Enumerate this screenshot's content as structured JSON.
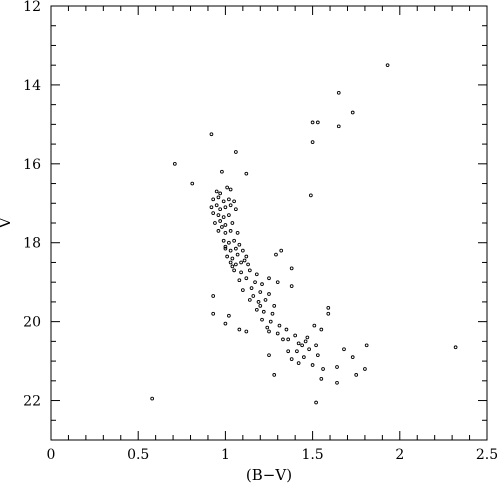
{
  "chart_data": {
    "type": "scatter",
    "title": "",
    "xlabel": "(B−V)",
    "ylabel": "V",
    "xlim": [
      0,
      2.5
    ],
    "ylim": [
      23,
      12
    ],
    "y_inverted": true,
    "x_ticks": [
      0,
      0.5,
      1,
      1.5,
      2,
      2.5
    ],
    "x_tick_labels": [
      "0",
      "0.5",
      "1",
      "1.5",
      "2",
      "2.5"
    ],
    "y_ticks": [
      12,
      14,
      16,
      18,
      20,
      22
    ],
    "y_tick_labels": [
      "12",
      "14",
      "16",
      "18",
      "20",
      "22"
    ],
    "grid": false,
    "marker": "open-circle",
    "series": [
      {
        "points": [
          [
            0.92,
            15.25
          ],
          [
            0.71,
            16.0
          ],
          [
            0.81,
            16.5
          ],
          [
            1.06,
            15.7
          ],
          [
            1.12,
            16.25
          ],
          [
            0.98,
            16.2
          ],
          [
            0.95,
            16.7
          ],
          [
            0.97,
            16.75
          ],
          [
            1.01,
            16.6
          ],
          [
            1.03,
            16.65
          ],
          [
            0.93,
            16.9
          ],
          [
            0.96,
            16.85
          ],
          [
            0.99,
            16.95
          ],
          [
            1.02,
            16.9
          ],
          [
            1.05,
            16.95
          ],
          [
            0.92,
            17.1
          ],
          [
            0.95,
            17.05
          ],
          [
            0.97,
            17.15
          ],
          [
            1.0,
            17.1
          ],
          [
            1.03,
            17.05
          ],
          [
            1.06,
            17.15
          ],
          [
            0.93,
            17.25
          ],
          [
            0.96,
            17.3
          ],
          [
            0.99,
            17.35
          ],
          [
            1.02,
            17.3
          ],
          [
            0.94,
            17.5
          ],
          [
            0.97,
            17.45
          ],
          [
            1.0,
            17.55
          ],
          [
            1.04,
            17.5
          ],
          [
            0.96,
            17.7
          ],
          [
            1.0,
            17.75
          ],
          [
            1.03,
            17.7
          ],
          [
            1.07,
            17.75
          ],
          [
            0.99,
            17.95
          ],
          [
            1.02,
            18.0
          ],
          [
            1.05,
            17.95
          ],
          [
            1.08,
            18.05
          ],
          [
            1.0,
            18.15
          ],
          [
            1.03,
            18.2
          ],
          [
            1.06,
            18.15
          ],
          [
            1.1,
            18.2
          ],
          [
            1.01,
            18.35
          ],
          [
            1.04,
            18.4
          ],
          [
            1.07,
            18.3
          ],
          [
            1.12,
            18.35
          ],
          [
            1.03,
            18.5
          ],
          [
            1.06,
            18.55
          ],
          [
            1.09,
            18.5
          ],
          [
            1.13,
            18.55
          ],
          [
            1.05,
            18.7
          ],
          [
            1.09,
            18.75
          ],
          [
            1.14,
            18.7
          ],
          [
            1.18,
            18.8
          ],
          [
            1.08,
            18.95
          ],
          [
            1.12,
            18.9
          ],
          [
            1.17,
            19.0
          ],
          [
            1.21,
            19.05
          ],
          [
            1.1,
            19.2
          ],
          [
            1.15,
            19.15
          ],
          [
            1.2,
            19.25
          ],
          [
            1.25,
            19.3
          ],
          [
            1.14,
            19.45
          ],
          [
            1.19,
            19.5
          ],
          [
            1.23,
            19.45
          ],
          [
            1.28,
            19.6
          ],
          [
            1.18,
            19.7
          ],
          [
            1.22,
            19.75
          ],
          [
            1.27,
            19.8
          ],
          [
            1.21,
            19.95
          ],
          [
            1.26,
            20.0
          ],
          [
            1.31,
            20.1
          ],
          [
            1.25,
            20.25
          ],
          [
            1.3,
            20.3
          ],
          [
            1.35,
            20.2
          ],
          [
            1.29,
            18.3
          ],
          [
            1.32,
            18.2
          ],
          [
            1.38,
            19.1
          ],
          [
            1.38,
            18.65
          ],
          [
            1.25,
            18.9
          ],
          [
            1.3,
            19.0
          ],
          [
            0.93,
            19.35
          ],
          [
            0.93,
            19.8
          ],
          [
            1.0,
            20.05
          ],
          [
            1.08,
            20.2
          ],
          [
            1.12,
            20.25
          ],
          [
            1.02,
            19.85
          ],
          [
            1.36,
            20.45
          ],
          [
            1.4,
            20.35
          ],
          [
            1.42,
            20.55
          ],
          [
            1.44,
            20.6
          ],
          [
            1.41,
            20.75
          ],
          [
            1.46,
            20.5
          ],
          [
            1.48,
            20.7
          ],
          [
            1.52,
            20.6
          ],
          [
            1.51,
            20.1
          ],
          [
            1.55,
            20.2
          ],
          [
            1.45,
            20.9
          ],
          [
            1.5,
            21.1
          ],
          [
            1.53,
            20.85
          ],
          [
            1.56,
            21.2
          ],
          [
            1.42,
            21.05
          ],
          [
            1.38,
            20.95
          ],
          [
            1.25,
            20.85
          ],
          [
            1.28,
            21.35
          ],
          [
            1.55,
            21.45
          ],
          [
            1.64,
            21.55
          ],
          [
            1.64,
            21.15
          ],
          [
            1.73,
            20.9
          ],
          [
            1.75,
            21.35
          ],
          [
            1.8,
            21.2
          ],
          [
            1.81,
            20.6
          ],
          [
            1.68,
            20.7
          ],
          [
            1.59,
            19.8
          ],
          [
            1.59,
            19.65
          ],
          [
            1.49,
            16.8
          ],
          [
            1.5,
            15.45
          ],
          [
            1.5,
            14.95
          ],
          [
            1.53,
            14.95
          ],
          [
            1.65,
            14.2
          ],
          [
            1.65,
            15.05
          ],
          [
            1.73,
            14.7
          ],
          [
            1.93,
            13.5
          ],
          [
            2.32,
            20.65
          ],
          [
            0.58,
            21.95
          ],
          [
            1.52,
            22.05
          ],
          [
            1.36,
            20.75
          ],
          [
            1.33,
            20.45
          ],
          [
            1.47,
            20.4
          ],
          [
            1.0,
            18.1
          ],
          [
            1.04,
            18.6
          ],
          [
            0.98,
            17.6
          ],
          [
            1.11,
            18.45
          ],
          [
            1.16,
            19.35
          ],
          [
            1.2,
            19.6
          ],
          [
            1.24,
            20.15
          ]
        ]
      }
    ]
  }
}
